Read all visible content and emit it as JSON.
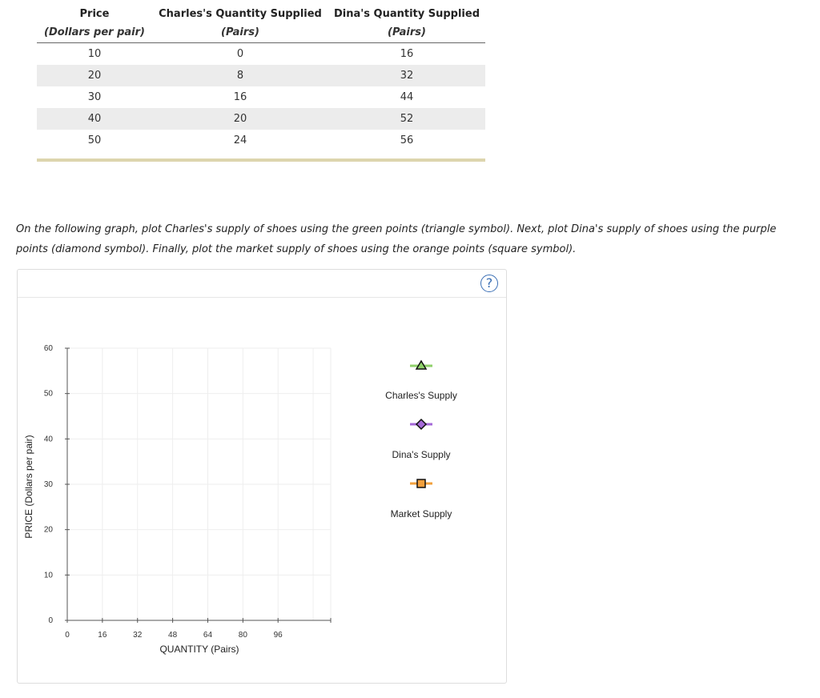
{
  "table": {
    "headers": [
      {
        "title": "Price",
        "subtitle": "(Dollars per pair)"
      },
      {
        "title": "Charles's Quantity Supplied",
        "subtitle": "(Pairs)"
      },
      {
        "title": "Dina's Quantity Supplied",
        "subtitle": "(Pairs)"
      }
    ],
    "rows": [
      [
        "10",
        "0",
        "16"
      ],
      [
        "20",
        "8",
        "32"
      ],
      [
        "30",
        "16",
        "44"
      ],
      [
        "40",
        "20",
        "52"
      ],
      [
        "50",
        "24",
        "56"
      ]
    ]
  },
  "instructions": "On the following graph, plot Charles's supply of shoes using the green points (triangle symbol). Next, plot Dina's supply of shoes using the purple points (diamond symbol). Finally, plot the market supply of shoes using the orange points (square symbol).",
  "help": {
    "label": "?"
  },
  "chart_data": {
    "type": "scatter",
    "xlabel": "QUANTITY (Pairs)",
    "ylabel": "PRICE (Dollars per pair)",
    "xlim": [
      0,
      120
    ],
    "ylim": [
      0,
      60
    ],
    "x_ticks": [
      0,
      16,
      32,
      48,
      64,
      80,
      96
    ],
    "y_ticks": [
      0,
      10,
      20,
      30,
      40,
      50,
      60
    ],
    "grid": true,
    "series": [],
    "legend": {
      "placement": "right",
      "items": [
        {
          "label": "Charles's Supply",
          "symbol": "triangle",
          "color": "#8fd16a"
        },
        {
          "label": "Dina's Supply",
          "symbol": "diamond",
          "color": "#a569d8"
        },
        {
          "label": "Market Supply",
          "symbol": "square",
          "color": "#f2a03d"
        }
      ]
    }
  }
}
